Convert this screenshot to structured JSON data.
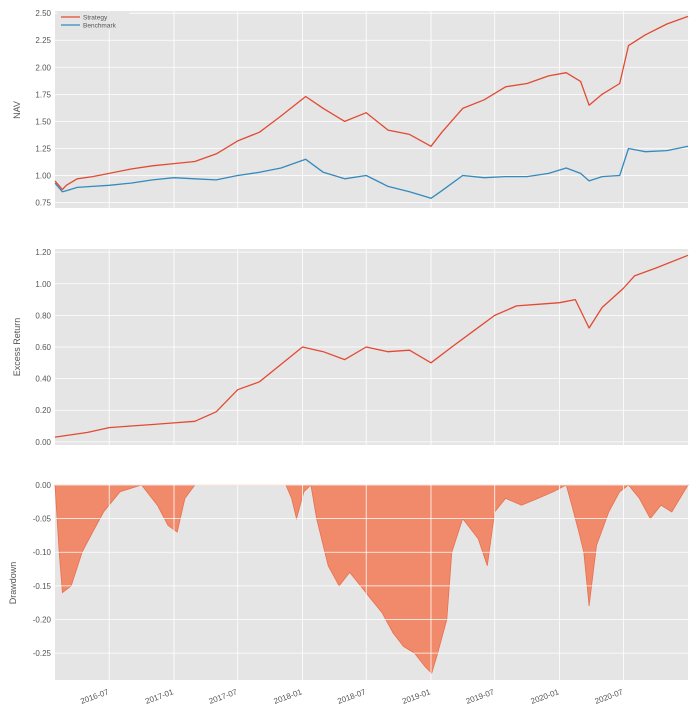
{
  "chart_data": [
    {
      "type": "line",
      "ylabel": "NAV",
      "ylim": [
        0.7,
        2.52
      ],
      "yticks": [
        "0.75",
        "1.00",
        "1.25",
        "1.50",
        "1.75",
        "2.00",
        "2.25",
        "2.50"
      ],
      "legend": "top-left",
      "grid": true,
      "colors": {
        "Strategy": "#e24a33",
        "Benchmark": "#348abd"
      },
      "series": [
        {
          "name": "Strategy",
          "x": [
            "2016-01-29",
            "2016-02-19",
            "2016-03-01",
            "2016-04-01",
            "2016-05-15",
            "2016-07-01",
            "2016-09-01",
            "2016-11-01",
            "2017-01-01",
            "2017-03-01",
            "2017-05-01",
            "2017-07-01",
            "2017-09-01",
            "2017-11-01",
            "2018-01-10",
            "2018-03-01",
            "2018-05-01",
            "2018-07-01",
            "2018-09-01",
            "2018-11-01",
            "2019-01-01",
            "2019-02-01",
            "2019-04-01",
            "2019-06-01",
            "2019-08-01",
            "2019-10-01",
            "2019-12-01",
            "2020-01-20",
            "2020-03-01",
            "2020-03-25",
            "2020-05-01",
            "2020-06-20",
            "2020-07-15",
            "2020-09-01",
            "2020-11-01",
            "2020-12-31"
          ],
          "values": [
            0.95,
            0.87,
            0.91,
            0.97,
            0.99,
            1.02,
            1.06,
            1.09,
            1.11,
            1.13,
            1.2,
            1.32,
            1.4,
            1.55,
            1.73,
            1.62,
            1.5,
            1.58,
            1.42,
            1.38,
            1.27,
            1.4,
            1.62,
            1.7,
            1.82,
            1.85,
            1.92,
            1.95,
            1.87,
            1.65,
            1.75,
            1.85,
            2.2,
            2.3,
            2.4,
            2.47
          ]
        },
        {
          "name": "Benchmark",
          "x": [
            "2016-01-29",
            "2016-02-19",
            "2016-03-01",
            "2016-04-01",
            "2016-05-15",
            "2016-07-01",
            "2016-09-01",
            "2016-11-01",
            "2017-01-01",
            "2017-03-01",
            "2017-05-01",
            "2017-07-01",
            "2017-09-01",
            "2017-11-01",
            "2018-01-10",
            "2018-03-01",
            "2018-05-01",
            "2018-07-01",
            "2018-09-01",
            "2018-11-01",
            "2019-01-01",
            "2019-02-01",
            "2019-04-01",
            "2019-06-01",
            "2019-08-01",
            "2019-10-01",
            "2019-12-01",
            "2020-01-20",
            "2020-03-01",
            "2020-03-25",
            "2020-05-01",
            "2020-06-20",
            "2020-07-15",
            "2020-09-01",
            "2020-11-01",
            "2020-12-31"
          ],
          "values": [
            0.93,
            0.85,
            0.86,
            0.89,
            0.9,
            0.91,
            0.93,
            0.96,
            0.98,
            0.97,
            0.96,
            1.0,
            1.03,
            1.07,
            1.15,
            1.03,
            0.97,
            1.0,
            0.9,
            0.85,
            0.79,
            0.86,
            1.0,
            0.98,
            0.99,
            0.99,
            1.02,
            1.07,
            1.02,
            0.95,
            0.99,
            1.0,
            1.25,
            1.22,
            1.23,
            1.27
          ]
        }
      ]
    },
    {
      "type": "line",
      "ylabel": "Excess Return",
      "ylim": [
        -0.02,
        1.22
      ],
      "yticks": [
        "0.00",
        "0.20",
        "0.40",
        "0.60",
        "0.80",
        "1.00",
        "1.20"
      ],
      "grid": true,
      "colors": {
        "line": "#e24a33"
      },
      "series": [
        {
          "x": [
            "2016-01-29",
            "2016-03-01",
            "2016-05-01",
            "2016-07-01",
            "2016-09-01",
            "2016-11-01",
            "2017-01-01",
            "2017-03-01",
            "2017-05-01",
            "2017-07-01",
            "2017-09-01",
            "2017-11-01",
            "2018-01-01",
            "2018-03-01",
            "2018-05-01",
            "2018-07-01",
            "2018-09-01",
            "2018-11-01",
            "2019-01-01",
            "2019-03-01",
            "2019-05-01",
            "2019-07-01",
            "2019-09-01",
            "2019-11-01",
            "2020-01-01",
            "2020-02-15",
            "2020-03-25",
            "2020-05-01",
            "2020-06-30",
            "2020-08-01",
            "2020-10-01",
            "2020-12-31"
          ],
          "values": [
            0.03,
            0.04,
            0.06,
            0.09,
            0.1,
            0.11,
            0.12,
            0.13,
            0.19,
            0.33,
            0.38,
            0.49,
            0.6,
            0.57,
            0.52,
            0.6,
            0.57,
            0.58,
            0.5,
            0.6,
            0.7,
            0.8,
            0.86,
            0.87,
            0.88,
            0.9,
            0.72,
            0.85,
            0.97,
            1.05,
            1.1,
            1.18
          ]
        }
      ]
    },
    {
      "type": "area",
      "ylabel": "Drawdown",
      "ylim": [
        -0.29,
        0.0
      ],
      "yticks": [
        "0.00",
        "-0.05",
        "-0.10",
        "-0.15",
        "-0.20",
        "-0.25"
      ],
      "xticks": [
        "2016-07",
        "2017-01",
        "2017-07",
        "2018-01",
        "2018-07",
        "2019-01",
        "2019-07",
        "2020-01",
        "2020-07"
      ],
      "grid": true,
      "colors": {
        "fill": "#f08a6a",
        "edge": "#e8704e"
      },
      "series": [
        {
          "x": [
            "2016-01-29",
            "2016-02-10",
            "2016-02-19",
            "2016-03-15",
            "2016-04-15",
            "2016-05-15",
            "2016-06-15",
            "2016-08-01",
            "2016-10-01",
            "2016-11-15",
            "2016-12-15",
            "2017-01-10",
            "2017-02-01",
            "2017-03-01",
            "2017-05-01",
            "2017-07-01",
            "2017-09-01",
            "2017-11-15",
            "2017-12-01",
            "2017-12-15",
            "2018-01-05",
            "2018-01-25",
            "2018-02-10",
            "2018-03-15",
            "2018-04-15",
            "2018-05-15",
            "2018-06-15",
            "2018-07-15",
            "2018-08-15",
            "2018-09-15",
            "2018-10-15",
            "2018-11-15",
            "2018-12-15",
            "2019-01-03",
            "2019-01-20",
            "2019-02-15",
            "2019-03-01",
            "2019-04-01",
            "2019-05-15",
            "2019-06-10",
            "2019-07-01",
            "2019-08-01",
            "2019-09-15",
            "2019-11-01",
            "2019-12-15",
            "2020-01-20",
            "2020-02-05",
            "2020-02-25",
            "2020-03-10",
            "2020-03-25",
            "2020-04-15",
            "2020-05-20",
            "2020-06-20",
            "2020-07-15",
            "2020-08-15",
            "2020-09-15",
            "2020-10-15",
            "2020-11-15",
            "2020-12-31"
          ],
          "values": [
            0.0,
            -0.1,
            -0.16,
            -0.15,
            -0.1,
            -0.07,
            -0.04,
            -0.01,
            0.0,
            -0.03,
            -0.06,
            -0.07,
            -0.02,
            0.0,
            0.0,
            0.0,
            0.0,
            0.0,
            -0.02,
            -0.05,
            -0.01,
            0.0,
            -0.05,
            -0.12,
            -0.15,
            -0.13,
            -0.15,
            -0.17,
            -0.19,
            -0.22,
            -0.24,
            -0.25,
            -0.27,
            -0.28,
            -0.25,
            -0.2,
            -0.1,
            -0.05,
            -0.08,
            -0.12,
            -0.04,
            -0.02,
            -0.03,
            -0.02,
            -0.01,
            0.0,
            -0.03,
            -0.07,
            -0.1,
            -0.18,
            -0.09,
            -0.04,
            -0.01,
            0.0,
            -0.02,
            -0.05,
            -0.03,
            -0.04,
            0.0
          ]
        }
      ]
    }
  ]
}
